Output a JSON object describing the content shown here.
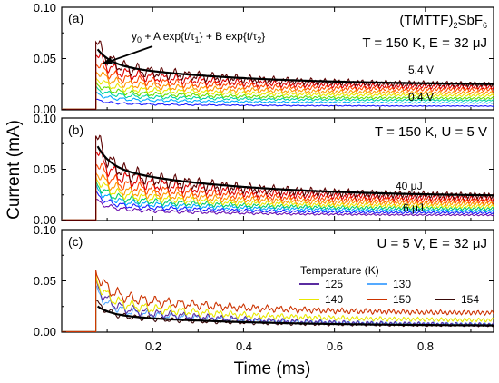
{
  "figure": {
    "ylabel": "Current (mA)",
    "xlabel": "Time (ms)"
  },
  "chart_data": [
    {
      "type": "line",
      "panel_label": "(a)",
      "compound": {
        "main": "(TMTTF)",
        "sub": "2",
        "rest": "SbF",
        "sub2": "6"
      },
      "condition": "T = 150 K, E = 32 μJ",
      "fit_annotation": {
        "y0": "y",
        "y0_sub": "0",
        "part1": " + A exp{t/τ",
        "tau1_sub": "1",
        "part2": "} + B exp{t/τ",
        "tau2_sub": "2",
        "part3": "}"
      },
      "series_labels": {
        "top": "5.4 V",
        "bottom": "0.4 V"
      },
      "xlim": [
        0,
        0.95
      ],
      "ylim": [
        0,
        0.1
      ],
      "yticks": [
        "0.00",
        "0.05",
        "0.10"
      ],
      "pulse_onset": 0.075,
      "series": [
        {
          "color": "#1a1aff",
          "peak": 0.01,
          "baseline": 0.0035
        },
        {
          "color": "#00a8ff",
          "peak": 0.016,
          "baseline": 0.0065
        },
        {
          "color": "#00d4a0",
          "peak": 0.021,
          "baseline": 0.009
        },
        {
          "color": "#66dd00",
          "peak": 0.026,
          "baseline": 0.011
        },
        {
          "color": "#e8e800",
          "peak": 0.032,
          "baseline": 0.0135
        },
        {
          "color": "#ff9900",
          "peak": 0.04,
          "baseline": 0.016
        },
        {
          "color": "#ff4a00",
          "peak": 0.048,
          "baseline": 0.019
        },
        {
          "color": "#dd0000",
          "peak": 0.057,
          "baseline": 0.0215
        },
        {
          "color": "#5a0000",
          "peak": 0.068,
          "baseline": 0.024
        }
      ]
    },
    {
      "type": "line",
      "panel_label": "(b)",
      "condition": "T = 150 K, U = 5 V",
      "series_labels": {
        "top": "40 μJ",
        "bottom": "6 μJ"
      },
      "xlim": [
        0,
        0.95
      ],
      "ylim": [
        0,
        0.1
      ],
      "yticks": [
        "0.00",
        "0.05",
        "0.10"
      ],
      "pulse_onset": 0.075,
      "series": [
        {
          "color": "#6a0dad",
          "peak": 0.02,
          "baseline": 0.005
        },
        {
          "color": "#1a1aff",
          "peak": 0.026,
          "baseline": 0.007
        },
        {
          "color": "#00a8ff",
          "peak": 0.032,
          "baseline": 0.009
        },
        {
          "color": "#00cc66",
          "peak": 0.037,
          "baseline": 0.011
        },
        {
          "color": "#e8e800",
          "peak": 0.043,
          "baseline": 0.013
        },
        {
          "color": "#ff9900",
          "peak": 0.05,
          "baseline": 0.0155
        },
        {
          "color": "#ff4a00",
          "peak": 0.06,
          "baseline": 0.018
        },
        {
          "color": "#dd0000",
          "peak": 0.072,
          "baseline": 0.0205
        },
        {
          "color": "#5a0000",
          "peak": 0.085,
          "baseline": 0.023
        }
      ]
    },
    {
      "type": "line",
      "panel_label": "(c)",
      "condition": "U = 5 V, E = 32 μJ",
      "legend": {
        "title": "Temperature (K)",
        "entries": [
          {
            "label": "125",
            "color": "#5a2ca0"
          },
          {
            "label": "130",
            "color": "#55aaff"
          },
          {
            "label": "140",
            "color": "#e8e800"
          },
          {
            "label": "150",
            "color": "#cc3300"
          },
          {
            "label": "154",
            "color": "#3a0a0a"
          }
        ]
      },
      "xlim": [
        0,
        0.95
      ],
      "ylim": [
        0,
        0.1
      ],
      "yticks": [
        "0.00",
        "0.05",
        "0.10"
      ],
      "xticks": [
        "0.2",
        "0.4",
        "0.6",
        "0.8"
      ],
      "pulse_onset": 0.075,
      "series": [
        {
          "name": "154",
          "color": "#3a0a0a",
          "peak": 0.03,
          "baseline": 0.006
        },
        {
          "name": "130",
          "color": "#55aaff",
          "peak": 0.042,
          "baseline": 0.007
        },
        {
          "name": "125",
          "color": "#5a2ca0",
          "peak": 0.048,
          "baseline": 0.0065
        },
        {
          "name": "140",
          "color": "#e8e800",
          "peak": 0.052,
          "baseline": 0.011
        },
        {
          "name": "150",
          "color": "#cc3300",
          "peak": 0.06,
          "baseline": 0.018
        }
      ]
    }
  ]
}
